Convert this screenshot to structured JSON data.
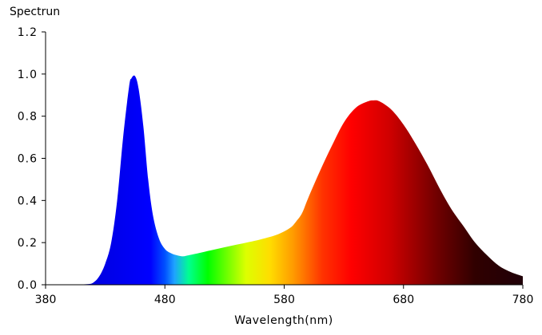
{
  "chart_data": {
    "type": "area",
    "title": "",
    "ylabel": "Spectrun",
    "xlabel": "Wavelength(nm)",
    "xlim": [
      380,
      780
    ],
    "ylim": [
      0,
      1.2
    ],
    "x_ticks": [
      380,
      480,
      580,
      680,
      780
    ],
    "y_ticks": [
      0.0,
      0.2,
      0.4,
      0.6,
      0.8,
      1.0,
      1.2
    ],
    "y_tick_labels": [
      "0.0",
      "0.2",
      "0.4",
      "0.6",
      "0.8",
      "1.0",
      "1.2"
    ],
    "x_tick_labels": [
      "380",
      "480",
      "580",
      "680",
      "780"
    ],
    "grid": false,
    "legend": "none",
    "series": [
      {
        "x": [
          380,
          400,
          415,
          420,
          425,
          430,
          435,
          440,
          445,
          450,
          452,
          455,
          458,
          462,
          466,
          470,
          475,
          480,
          485,
          490,
          495,
          500,
          520,
          540,
          560,
          575,
          585,
          590,
          595,
          600,
          610,
          620,
          630,
          640,
          650,
          655,
          660,
          670,
          680,
          690,
          700,
          710,
          720,
          730,
          740,
          750,
          760,
          770,
          780
        ],
        "y": [
          0.0,
          0.0,
          0.003,
          0.01,
          0.04,
          0.1,
          0.2,
          0.4,
          0.7,
          0.94,
          0.98,
          0.99,
          0.93,
          0.75,
          0.5,
          0.33,
          0.22,
          0.17,
          0.15,
          0.14,
          0.135,
          0.14,
          0.165,
          0.19,
          0.215,
          0.24,
          0.27,
          0.3,
          0.34,
          0.41,
          0.54,
          0.66,
          0.77,
          0.84,
          0.87,
          0.875,
          0.87,
          0.83,
          0.76,
          0.67,
          0.57,
          0.46,
          0.36,
          0.28,
          0.2,
          0.14,
          0.09,
          0.06,
          0.04
        ]
      }
    ]
  }
}
